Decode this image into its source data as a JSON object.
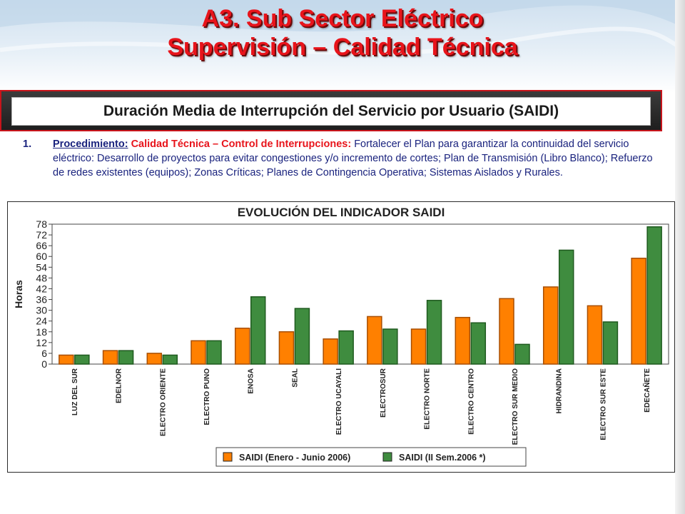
{
  "header": {
    "title_line1": "A3. Sub Sector Eléctrico",
    "title_line2": "Supervisión – Calidad Técnica"
  },
  "banner": {
    "text": "Duración Media de Interrupción del Servicio por Usuario (SAIDI)"
  },
  "procedure": {
    "number": "1.",
    "label": "Procedimiento:",
    "highlight": "Calidad Técnica – Control de Interrupciones:",
    "text": "Fortalecer el Plan para garantizar la continuidad del servicio eléctrico: Desarrollo de proyectos para evitar congestiones y/o incremento de cortes; Plan de Transmisión (Libro Blanco); Refuerzo de redes existentes (equipos); Zonas Críticas; Planes de Contingencia Operativa; Sistemas Aislados y Rurales."
  },
  "colors": {
    "title": "#e8141b",
    "series1": "#ff8000",
    "series2": "#3f8c3f"
  },
  "chart_data": {
    "type": "bar",
    "title": "EVOLUCIÓN DEL INDICADOR SAIDI",
    "xlabel": "",
    "ylabel": "Horas",
    "ylim": [
      0,
      78
    ],
    "yticks": [
      0,
      6,
      12,
      18,
      24,
      30,
      36,
      42,
      48,
      54,
      60,
      66,
      72,
      78
    ],
    "grid": false,
    "legend": "bottom",
    "categories": [
      "LUZ DEL SUR",
      "EDELNOR",
      "ELECTRO ORIENTE",
      "ELECTRO PUNO",
      "ENOSA",
      "SEAL",
      "ELECTRO UCAYALI",
      "ELECTROSUR",
      "ELECTRO NORTE",
      "ELECTRO CENTRO",
      "ELECTRO SUR MEDIO",
      "HIDRANDINA",
      "ELECTRO SUR ESTE",
      "EDECAÑETE"
    ],
    "series": [
      {
        "name": "SAIDI (Enero - Junio 2006)",
        "values": [
          5,
          7.5,
          6,
          13,
          20,
          18,
          14,
          26.5,
          19.5,
          26,
          36.5,
          43,
          32.5,
          59
        ]
      },
      {
        "name": "SAIDI (II Sem.2006 *)",
        "values": [
          5,
          7.5,
          5,
          13,
          37.5,
          31,
          18.5,
          19.5,
          35.5,
          23,
          11,
          63.5,
          23.5,
          76.5
        ]
      }
    ]
  }
}
